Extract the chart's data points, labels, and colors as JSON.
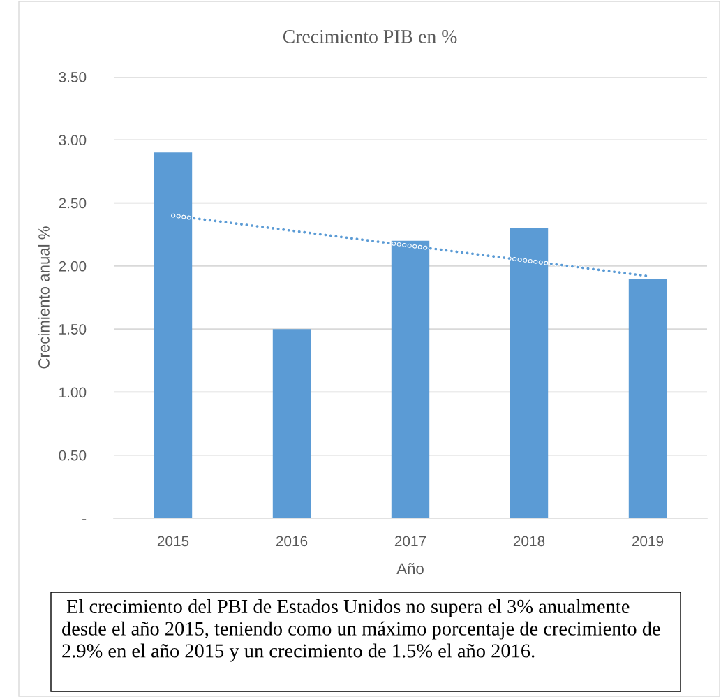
{
  "chart_data": {
    "type": "bar",
    "title": "Crecimiento PIB en %",
    "xlabel": "Año",
    "ylabel": "Crecimiento anual %",
    "categories": [
      "2015",
      "2016",
      "2017",
      "2018",
      "2019"
    ],
    "series": [
      {
        "color": "#5b9bd5",
        "values": [
          2.9,
          1.5,
          2.2,
          2.3,
          1.9
        ]
      },
      {
        "type": "line",
        "color": "#5b9bd5",
        "line_style": "dotted",
        "values": [
          2.4,
          2.28,
          2.16,
          2.04,
          1.92
        ]
      }
    ],
    "ylim": [
      0,
      3.5
    ],
    "yticks": [
      {
        "value": 0,
        "label": "-"
      },
      {
        "value": 0.5,
        "label": "0.50"
      },
      {
        "value": 1.0,
        "label": "1.00"
      },
      {
        "value": 1.5,
        "label": "1.50"
      },
      {
        "value": 2.0,
        "label": "2.00"
      },
      {
        "value": 2.5,
        "label": "2.50"
      },
      {
        "value": 3.0,
        "label": "3.00"
      },
      {
        "value": 3.5,
        "label": "3.50"
      }
    ],
    "grid": "y",
    "annotations": [
      " El crecimiento del PBI de Estados Unidos no supera el 3% anualmente\ndesde el año 2015, teniendo como un máximo porcentaje de crecimiento de\n2.9% en el año 2015 y un crecimiento de 1.5% el año 2016."
    ]
  }
}
